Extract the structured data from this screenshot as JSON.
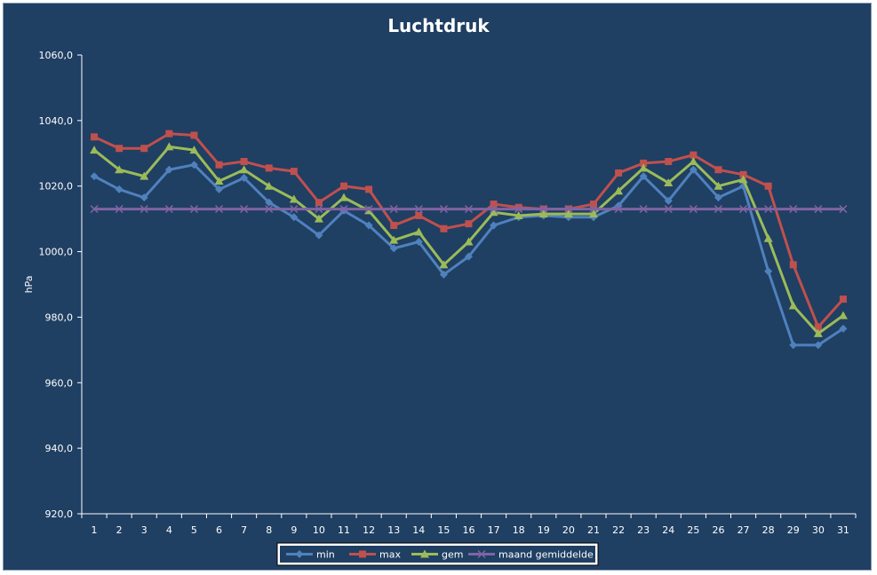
{
  "chart_data": {
    "type": "line",
    "title": "Luchtdruk",
    "xlabel": "",
    "ylabel": "hPa",
    "ylim": [
      920,
      1060
    ],
    "y_ticks": [
      "920,0",
      "940,0",
      "960,0",
      "980,0",
      "1000,0",
      "1020,0",
      "1040,0",
      "1060,0"
    ],
    "categories": [
      "1",
      "2",
      "3",
      "4",
      "5",
      "6",
      "7",
      "8",
      "9",
      "10",
      "11",
      "12",
      "13",
      "14",
      "15",
      "16",
      "17",
      "18",
      "19",
      "20",
      "21",
      "22",
      "23",
      "24",
      "25",
      "26",
      "27",
      "28",
      "29",
      "30",
      "31"
    ],
    "grid": false,
    "legend_position": "bottom",
    "series": [
      {
        "name": "min",
        "color": "#4f81bd",
        "marker": "diamond",
        "values": [
          1023,
          1019,
          1016.5,
          1025,
          1026.5,
          1019,
          1022.5,
          1015,
          1010.5,
          1005,
          1012.5,
          1008,
          1001,
          1003,
          993,
          998.5,
          1008,
          1010.5,
          1011,
          1010.5,
          1010.5,
          1014,
          1023,
          1015.5,
          1025,
          1016.5,
          1020,
          994,
          971.5,
          971.5,
          976.5
        ]
      },
      {
        "name": "max",
        "color": "#c0504d",
        "marker": "square",
        "values": [
          1035,
          1031.5,
          1031.5,
          1036,
          1035.5,
          1026.5,
          1027.5,
          1025.5,
          1024.5,
          1015,
          1020,
          1019,
          1008,
          1011,
          1007,
          1008.5,
          1014.5,
          1013.5,
          1013,
          1013,
          1014.5,
          1024,
          1027,
          1027.5,
          1029.5,
          1025,
          1023.5,
          1020,
          996,
          977,
          985.5
        ]
      },
      {
        "name": "gem",
        "color": "#9bbb59",
        "marker": "triangle",
        "values": [
          1031,
          1025,
          1023,
          1032,
          1031,
          1021.5,
          1025,
          1020,
          1016,
          1010,
          1016.5,
          1012.5,
          1003.5,
          1006,
          996,
          1003,
          1012,
          1011,
          1011.5,
          1011.5,
          1011.5,
          1018.5,
          1025.5,
          1021,
          1027.5,
          1020,
          1022,
          1004,
          983.5,
          975,
          980.5
        ]
      },
      {
        "name": "maand gemiddelde",
        "color": "#8064a2",
        "marker": "x",
        "values": [
          1013,
          1013,
          1013,
          1013,
          1013,
          1013,
          1013,
          1013,
          1013,
          1013,
          1013,
          1013,
          1013,
          1013,
          1013,
          1013,
          1013,
          1013,
          1013,
          1013,
          1013,
          1013,
          1013,
          1013,
          1013,
          1013,
          1013,
          1013,
          1013,
          1013,
          1013
        ]
      }
    ]
  },
  "colors": {
    "background": "#1f3f63",
    "axis": "#ffffff",
    "legend_background": "#ffffff"
  }
}
